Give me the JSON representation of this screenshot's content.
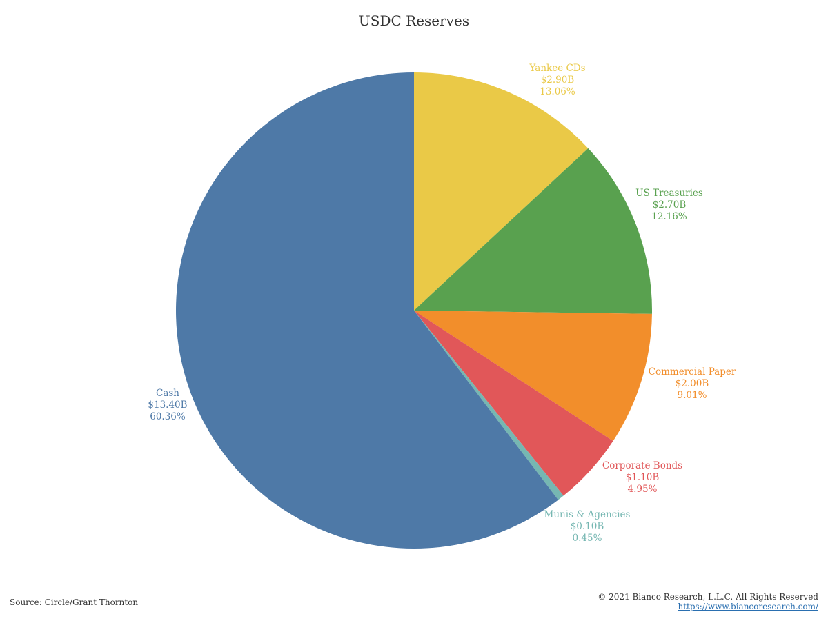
{
  "chart_data": {
    "type": "pie",
    "title": "USDC Reserves",
    "start_angle_deg": 0,
    "direction": "clockwise",
    "slices": [
      {
        "label": "Yankee CDs",
        "value_text": "$2.90B",
        "pct_text": "13.06%",
        "value": 2.9,
        "pct": 13.06,
        "color": "#EAC947"
      },
      {
        "label": "US Treasuries",
        "value_text": "$2.70B",
        "pct_text": "12.16%",
        "value": 2.7,
        "pct": 12.16,
        "color": "#59A14F"
      },
      {
        "label": "Commercial Paper",
        "value_text": "$2.00B",
        "pct_text": "9.01%",
        "value": 2.0,
        "pct": 9.01,
        "color": "#F28E2B"
      },
      {
        "label": "Corporate Bonds",
        "value_text": "$1.10B",
        "pct_text": "4.95%",
        "value": 1.1,
        "pct": 4.95,
        "color": "#E15759"
      },
      {
        "label": "Munis & Agencies",
        "value_text": "$0.10B",
        "pct_text": "0.45%",
        "value": 0.1,
        "pct": 0.45,
        "color": "#76B7B2"
      },
      {
        "label": "Cash",
        "value_text": "$13.40B",
        "pct_text": "60.36%",
        "value": 13.4,
        "pct": 60.36,
        "color": "#4E79A7"
      }
    ]
  },
  "footer": {
    "source": "Source: Circle/Grant Thornton",
    "copyright": "© 2021 Bianco Research, L.L.C. All Rights Reserved",
    "website": "https://www.biancoresearch.com/"
  }
}
